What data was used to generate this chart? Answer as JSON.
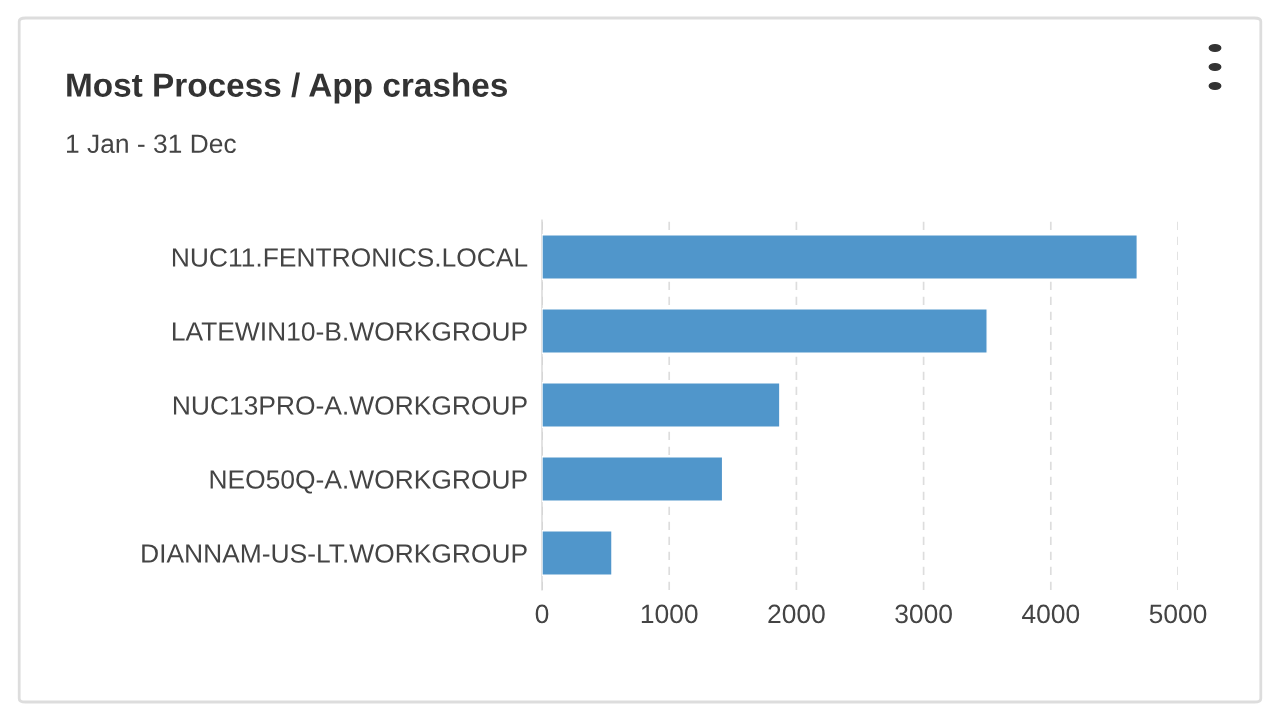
{
  "chart_data": {
    "type": "bar",
    "orientation": "horizontal",
    "title": "Most Process / App crashes",
    "subtitle": "1 Jan - 31 Dec",
    "categories": [
      "NUC11.FENTRONICS.LOCAL",
      "LATEWIN10-B.WORKGROUP",
      "NUC13PRO-A.WORKGROUP",
      "NEO50Q-A.WORKGROUP",
      "DIANNAM-US-LT.WORKGROUP"
    ],
    "values": [
      4680,
      3500,
      1870,
      1420,
      550
    ],
    "color": "#5096cb",
    "xlim": [
      0,
      5000
    ],
    "xticks": [
      0,
      1000,
      2000,
      3000,
      4000,
      5000
    ],
    "grid": "x"
  }
}
